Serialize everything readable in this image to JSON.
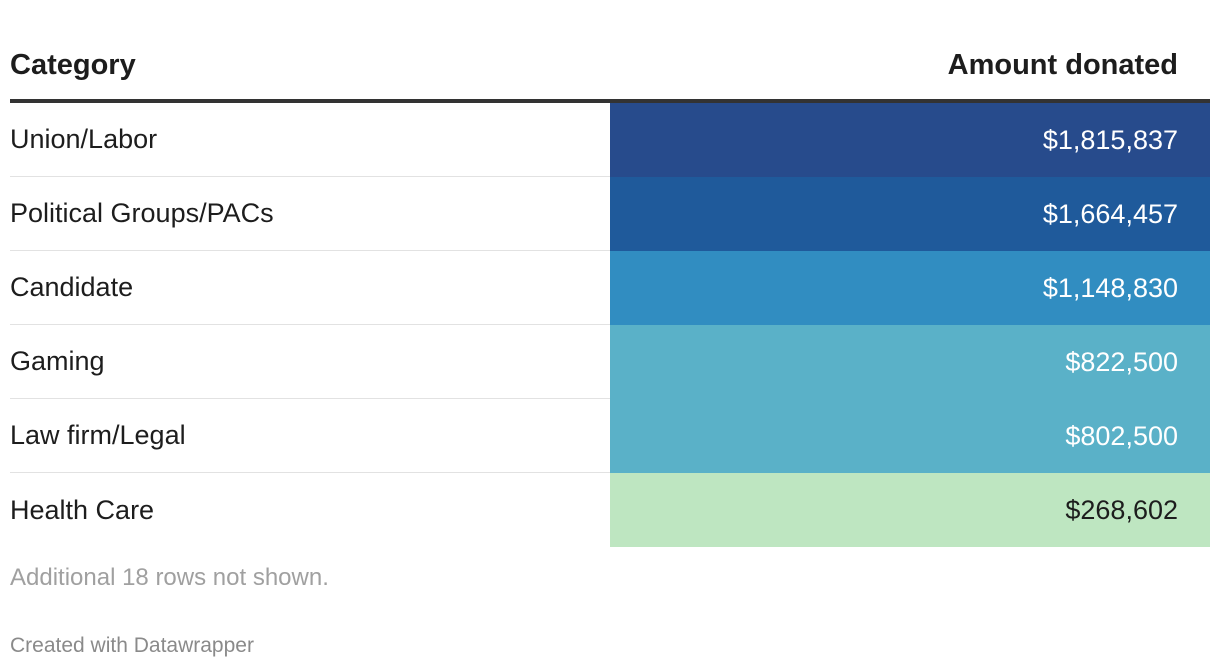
{
  "chart_data": {
    "type": "table",
    "columns": [
      "Category",
      "Amount donated"
    ],
    "rows": [
      {
        "category": "Union/Labor",
        "amount": "$1,815,837",
        "value": 1815837,
        "bg": "#274b8c",
        "fg": "#ffffff"
      },
      {
        "category": "Political Groups/PACs",
        "amount": "$1,664,457",
        "value": 1664457,
        "bg": "#1f5a9b",
        "fg": "#ffffff"
      },
      {
        "category": "Candidate",
        "amount": "$1,148,830",
        "value": 1148830,
        "bg": "#318dc1",
        "fg": "#ffffff"
      },
      {
        "category": "Gaming",
        "amount": "$822,500",
        "value": 822500,
        "bg": "#5ab1c8",
        "fg": "#ffffff"
      },
      {
        "category": "Law firm/Legal",
        "amount": "$802,500",
        "value": 802500,
        "bg": "#5ab1c8",
        "fg": "#ffffff"
      },
      {
        "category": "Health Care",
        "amount": "$268,602",
        "value": 268602,
        "bg": "#bee6c1",
        "fg": "#1d1d1d"
      }
    ],
    "note": "Additional 18 rows not shown."
  },
  "footer": {
    "credit": "Created with Datawrapper"
  }
}
